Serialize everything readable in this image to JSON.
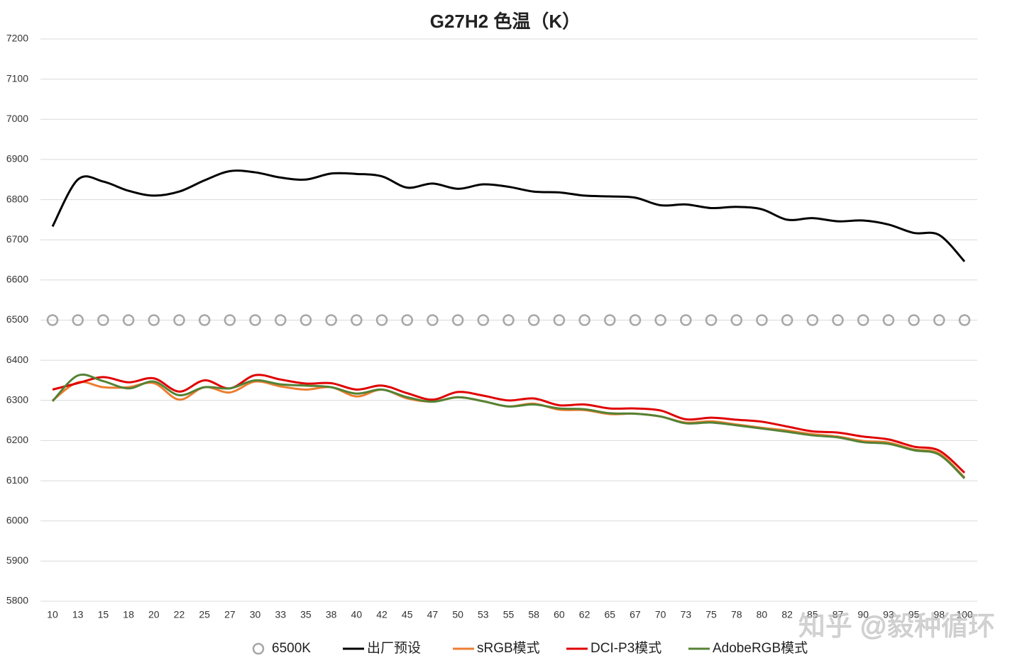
{
  "chart_data": {
    "type": "line",
    "title": "G27H2 色温（K）",
    "categories": [
      10,
      13,
      15,
      18,
      20,
      22,
      25,
      27,
      30,
      33,
      35,
      38,
      40,
      42,
      45,
      47,
      50,
      53,
      55,
      58,
      60,
      62,
      65,
      67,
      70,
      73,
      75,
      78,
      80,
      82,
      85,
      87,
      90,
      93,
      95,
      98,
      100
    ],
    "ylim": [
      5800,
      7200
    ],
    "yticks": [
      5800,
      5900,
      6000,
      6100,
      6200,
      6300,
      6400,
      6500,
      6600,
      6700,
      6800,
      6900,
      7000,
      7100,
      7200
    ],
    "grid": true,
    "legend": "bottom",
    "series": [
      {
        "name": "6500K",
        "color": "#a6a6a6",
        "mode": "markers",
        "values": [
          6500,
          6500,
          6500,
          6500,
          6500,
          6500,
          6500,
          6500,
          6500,
          6500,
          6500,
          6500,
          6500,
          6500,
          6500,
          6500,
          6500,
          6500,
          6500,
          6500,
          6500,
          6500,
          6500,
          6500,
          6500,
          6500,
          6500,
          6500,
          6500,
          6500,
          6500,
          6500,
          6500,
          6500,
          6500,
          6500,
          6500
        ]
      },
      {
        "name": "出厂预设",
        "color": "#000000",
        "mode": "line",
        "values": [
          6733,
          6850,
          6845,
          6822,
          6810,
          6820,
          6848,
          6871,
          6868,
          6855,
          6850,
          6865,
          6864,
          6858,
          6830,
          6840,
          6827,
          6838,
          6832,
          6820,
          6818,
          6810,
          6808,
          6805,
          6786,
          6788,
          6779,
          6782,
          6776,
          6750,
          6754,
          6746,
          6748,
          6738,
          6717,
          6712,
          6646
        ]
      },
      {
        "name": "sRGB模式",
        "color": "#ed7d31",
        "mode": "line",
        "values": [
          6300,
          6345,
          6333,
          6333,
          6343,
          6302,
          6333,
          6320,
          6347,
          6335,
          6327,
          6333,
          6310,
          6327,
          6305,
          6297,
          6308,
          6298,
          6285,
          6292,
          6277,
          6276,
          6266,
          6267,
          6260,
          6245,
          6248,
          6240,
          6232,
          6225,
          6216,
          6210,
          6199,
          6195,
          6178,
          6168,
          6108
        ]
      },
      {
        "name": "DCI-P3模式",
        "color": "#e00000",
        "mode": "line",
        "values": [
          6327,
          6343,
          6358,
          6345,
          6355,
          6322,
          6350,
          6330,
          6363,
          6352,
          6342,
          6343,
          6327,
          6337,
          6318,
          6302,
          6321,
          6312,
          6300,
          6305,
          6288,
          6290,
          6280,
          6280,
          6275,
          6253,
          6257,
          6252,
          6247,
          6235,
          6223,
          6220,
          6210,
          6203,
          6185,
          6175,
          6120
        ]
      },
      {
        "name": "AdobeRGB模式",
        "color": "#548235",
        "mode": "line",
        "values": [
          6298,
          6362,
          6348,
          6330,
          6347,
          6313,
          6333,
          6330,
          6350,
          6340,
          6337,
          6333,
          6317,
          6327,
          6308,
          6297,
          6308,
          6298,
          6285,
          6290,
          6280,
          6278,
          6268,
          6267,
          6260,
          6243,
          6245,
          6238,
          6230,
          6222,
          6213,
          6208,
          6196,
          6192,
          6176,
          6165,
          6106
        ]
      }
    ]
  },
  "watermark": "知乎 @毅种循环"
}
